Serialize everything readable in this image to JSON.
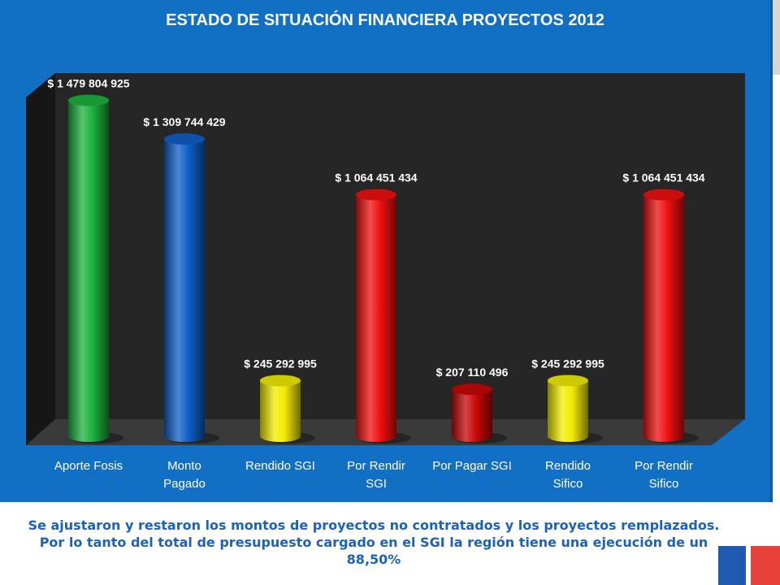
{
  "chart_data": {
    "type": "bar",
    "title": "ESTADO DE SITUACIÓN FINANCIERA PROYECTOS 2012",
    "categories": [
      [
        "Aporte Fosis"
      ],
      [
        "Monto",
        "Pagado"
      ],
      [
        "Rendido SGI"
      ],
      [
        "Por Rendir",
        "SGI"
      ],
      [
        "Por Pagar SGI"
      ],
      [
        "Rendido",
        "Sifico"
      ],
      [
        "Por Rendir",
        "Sifico"
      ]
    ],
    "values": [
      1479804925,
      1309744429,
      245292995,
      1064451434,
      207110496,
      245292995,
      1064451434
    ],
    "value_labels": [
      "$ 1 479 804 925",
      "$ 1 309 744 429",
      "$ 245 292 995",
      "$ 1 064 451 434",
      "$ 207 110 496",
      "$ 245 292 995",
      "$ 1 064 451 434"
    ],
    "colors": [
      "#1cb23e",
      "#0f5fc9",
      "#f3ec00",
      "#f01010",
      "#c80707",
      "#f3ec00",
      "#f01010"
    ],
    "ylim": [
      0,
      1600000000
    ],
    "grid": false,
    "legend": "none"
  },
  "note": "Se ajustaron y restaron los montos de proyectos no contratados y los proyectos remplazados. Por lo tanto del total de presupuesto cargado en el SGI la región tiene una ejecución de un 88,50%",
  "colors": {
    "panel": "#1270c4",
    "plot_area": "#262626",
    "note_text": "#1a63b8",
    "flag_blue": "#1f59b0",
    "flag_red": "#e8413c"
  }
}
